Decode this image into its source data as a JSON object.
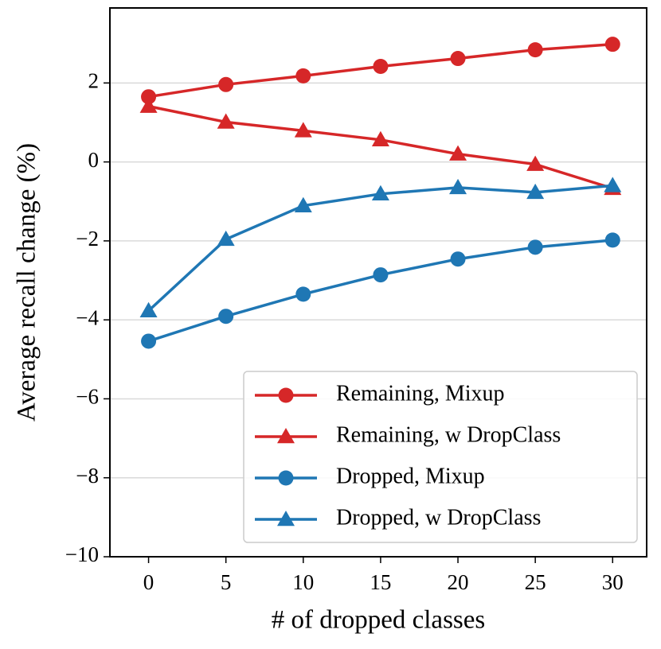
{
  "chart_data": {
    "type": "line",
    "x_label": "# of dropped classes",
    "y_label": "Average recall change (%)",
    "x": [
      0,
      5,
      10,
      15,
      20,
      25,
      30
    ],
    "xlim": [
      -2.5,
      32.2
    ],
    "xticks": [
      0,
      5,
      10,
      15,
      20,
      25,
      30
    ],
    "ylim": [
      -10,
      3.9
    ],
    "yticks": [
      {
        "value": -10,
        "label": "−10"
      },
      {
        "value": -8,
        "label": "−8"
      },
      {
        "value": -6,
        "label": "−6"
      },
      {
        "value": -4,
        "label": "−4"
      },
      {
        "value": -2,
        "label": "−2"
      },
      0,
      2
    ],
    "grid": true,
    "legend": "lower right",
    "series": [
      {
        "name": "Remaining, Mixup",
        "color": "#d62728",
        "marker": "circle",
        "values": [
          1.65,
          1.96,
          2.18,
          2.42,
          2.62,
          2.84,
          2.98
        ]
      },
      {
        "name": "Remaining, w DropClass",
        "color": "#d62728",
        "marker": "triangle",
        "values": [
          1.41,
          1.01,
          0.79,
          0.56,
          0.2,
          -0.06,
          -0.67
        ]
      },
      {
        "name": "Dropped, Mixup",
        "color": "#1f77b4",
        "marker": "circle",
        "values": [
          -4.54,
          -3.91,
          -3.35,
          -2.86,
          -2.46,
          -2.16,
          -1.98
        ]
      },
      {
        "name": "Dropped, w DropClass",
        "color": "#1f77b4",
        "marker": "triangle",
        "values": [
          -3.77,
          -1.96,
          -1.11,
          -0.81,
          -0.65,
          -0.77,
          -0.6
        ]
      }
    ]
  }
}
